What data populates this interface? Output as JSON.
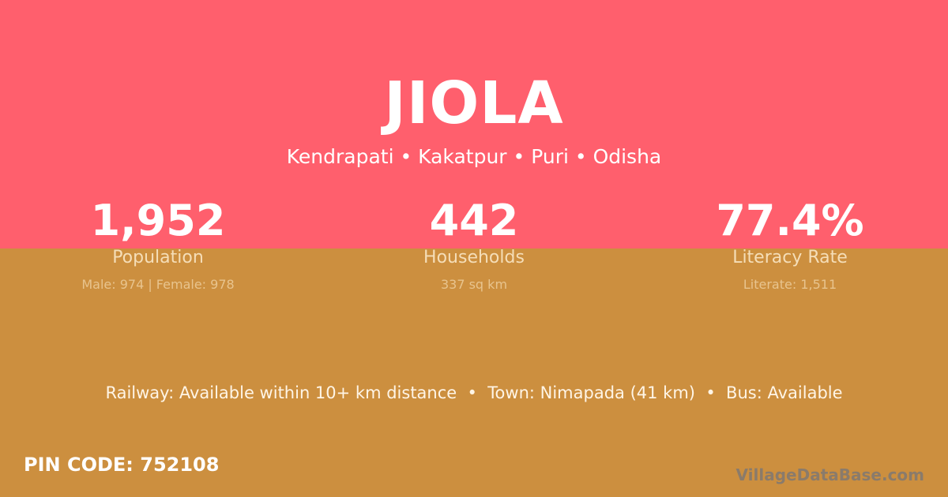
{
  "village": "JIOLA",
  "location": "Kendrapati • Kakatpur • Puri • Odisha",
  "stats": [
    {
      "value": "1,952",
      "label": "Population",
      "detail": "Male: 974 | Female: 978"
    },
    {
      "value": "442",
      "label": "Households",
      "detail": "337 sq km"
    },
    {
      "value": "77.4%",
      "label": "Literacy Rate",
      "detail": "Literate: 1,511"
    }
  ],
  "info": "Railway: Available within 10+ km distance  •  Town: Nimapada (41 km)  •  Bus: Available",
  "pin": "PIN CODE: 752108",
  "logo": "VillageDataBase.com",
  "colors": {
    "top": "#ff5f6d",
    "bottom": "#cc8f3f"
  }
}
